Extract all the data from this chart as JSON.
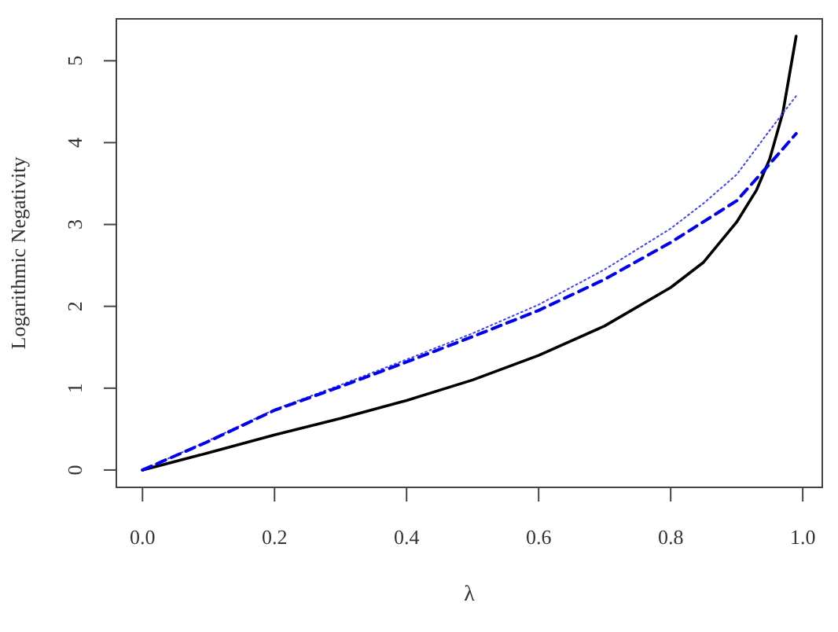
{
  "chart_data": {
    "type": "line",
    "xlabel": "λ",
    "ylabel": "Logarithmic Negativity",
    "xlim": [
      -0.0396,
      1.0296
    ],
    "ylim": [
      -0.212,
      5.512
    ],
    "xticks": [
      {
        "value": 0,
        "label": "0.0"
      },
      0.2,
      0.4,
      0.6,
      0.8,
      {
        "value": 1,
        "label": "1.0"
      }
    ],
    "yticks": [
      0,
      1,
      2,
      3,
      4,
      5
    ],
    "grid": false,
    "series": [
      {
        "color": "#000000",
        "line_style": "solid",
        "x": [
          0,
          0.1,
          0.2,
          0.3,
          0.4,
          0.5,
          0.6,
          0.7,
          0.8,
          0.85,
          0.9,
          0.93,
          0.95,
          0.97,
          0.99
        ],
        "values": [
          0,
          0.21,
          0.43,
          0.63,
          0.85,
          1.1,
          1.4,
          1.76,
          2.23,
          2.54,
          3.03,
          3.42,
          3.8,
          4.37,
          5.3
        ]
      },
      {
        "color": "#4040ff",
        "line_style": "dotted",
        "x": [
          0,
          0.1,
          0.2,
          0.3,
          0.4,
          0.5,
          0.6,
          0.7,
          0.8,
          0.85,
          0.9,
          0.95,
          0.99
        ],
        "values": [
          0,
          0.36,
          0.74,
          1.04,
          1.35,
          1.67,
          2.02,
          2.45,
          2.95,
          3.26,
          3.61,
          4.15,
          4.57
        ]
      },
      {
        "color": "#0000ee",
        "line_style": "dashed",
        "x": [
          0,
          0.1,
          0.2,
          0.3,
          0.4,
          0.5,
          0.6,
          0.7,
          0.8,
          0.9,
          0.95,
          0.99
        ],
        "values": [
          0,
          0.35,
          0.73,
          1.02,
          1.32,
          1.63,
          1.95,
          2.33,
          2.78,
          3.29,
          3.74,
          4.11
        ]
      }
    ]
  }
}
